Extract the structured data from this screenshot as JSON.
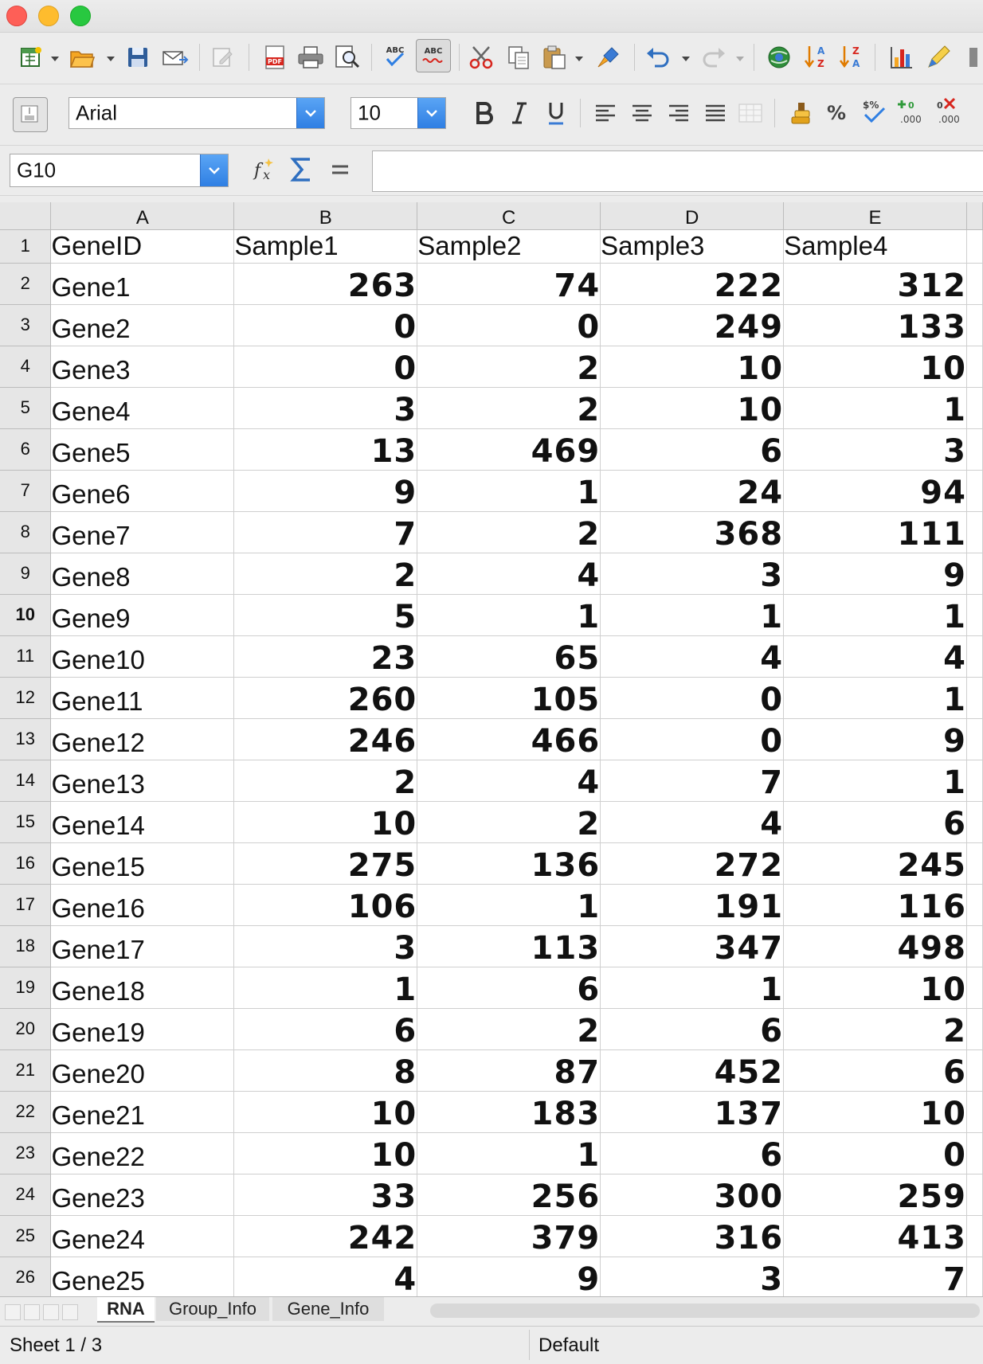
{
  "toolbar": {
    "font_name": "Arial",
    "font_size": "10",
    "icons": [
      "new-icon",
      "open-icon",
      "save-icon",
      "email-icon",
      "edit-doc-icon",
      "export-pdf-icon",
      "print-icon",
      "print-preview-icon",
      "spellcheck-icon",
      "autospell-icon",
      "cut-icon",
      "copy-icon",
      "paste-icon",
      "clone-format-icon",
      "undo-icon",
      "redo-icon",
      "navigator-icon",
      "sort-ascending-icon",
      "sort-descending-icon",
      "chart-icon",
      "draw-icon"
    ]
  },
  "formula_bar": {
    "cell_reference": "G10",
    "value": ""
  },
  "grid": {
    "columns": [
      "A",
      "B",
      "C",
      "D",
      "E"
    ],
    "active_row": "10",
    "rows": [
      {
        "num": "1",
        "cells": [
          "GeneID",
          "Sample1",
          "Sample2",
          "Sample3",
          "Sample4"
        ],
        "header": true
      },
      {
        "num": "2",
        "cells": [
          "Gene1",
          "263",
          "74",
          "222",
          "312"
        ]
      },
      {
        "num": "3",
        "cells": [
          "Gene2",
          "0",
          "0",
          "249",
          "133"
        ]
      },
      {
        "num": "4",
        "cells": [
          "Gene3",
          "0",
          "2",
          "10",
          "10"
        ]
      },
      {
        "num": "5",
        "cells": [
          "Gene4",
          "3",
          "2",
          "10",
          "1"
        ]
      },
      {
        "num": "6",
        "cells": [
          "Gene5",
          "13",
          "469",
          "6",
          "3"
        ]
      },
      {
        "num": "7",
        "cells": [
          "Gene6",
          "9",
          "1",
          "24",
          "94"
        ]
      },
      {
        "num": "8",
        "cells": [
          "Gene7",
          "7",
          "2",
          "368",
          "111"
        ]
      },
      {
        "num": "9",
        "cells": [
          "Gene8",
          "2",
          "4",
          "3",
          "9"
        ]
      },
      {
        "num": "10",
        "cells": [
          "Gene9",
          "5",
          "1",
          "1",
          "1"
        ]
      },
      {
        "num": "11",
        "cells": [
          "Gene10",
          "23",
          "65",
          "4",
          "4"
        ]
      },
      {
        "num": "12",
        "cells": [
          "Gene11",
          "260",
          "105",
          "0",
          "1"
        ]
      },
      {
        "num": "13",
        "cells": [
          "Gene12",
          "246",
          "466",
          "0",
          "9"
        ]
      },
      {
        "num": "14",
        "cells": [
          "Gene13",
          "2",
          "4",
          "7",
          "1"
        ]
      },
      {
        "num": "15",
        "cells": [
          "Gene14",
          "10",
          "2",
          "4",
          "6"
        ]
      },
      {
        "num": "16",
        "cells": [
          "Gene15",
          "275",
          "136",
          "272",
          "245"
        ]
      },
      {
        "num": "17",
        "cells": [
          "Gene16",
          "106",
          "1",
          "191",
          "116"
        ]
      },
      {
        "num": "18",
        "cells": [
          "Gene17",
          "3",
          "113",
          "347",
          "498"
        ]
      },
      {
        "num": "19",
        "cells": [
          "Gene18",
          "1",
          "6",
          "1",
          "10"
        ]
      },
      {
        "num": "20",
        "cells": [
          "Gene19",
          "6",
          "2",
          "6",
          "2"
        ]
      },
      {
        "num": "21",
        "cells": [
          "Gene20",
          "8",
          "87",
          "452",
          "6"
        ]
      },
      {
        "num": "22",
        "cells": [
          "Gene21",
          "10",
          "183",
          "137",
          "10"
        ]
      },
      {
        "num": "23",
        "cells": [
          "Gene22",
          "10",
          "1",
          "6",
          "0"
        ]
      },
      {
        "num": "24",
        "cells": [
          "Gene23",
          "33",
          "256",
          "300",
          "259"
        ]
      },
      {
        "num": "25",
        "cells": [
          "Gene24",
          "242",
          "379",
          "316",
          "413"
        ]
      },
      {
        "num": "26",
        "cells": [
          "Gene25",
          "4",
          "9",
          "3",
          "7"
        ]
      }
    ]
  },
  "sheet_tabs": [
    "RNA",
    "Group_Info",
    "Gene_Info"
  ],
  "active_tab": "RNA",
  "status": {
    "sheet": "Sheet 1 / 3",
    "style": "Default"
  }
}
